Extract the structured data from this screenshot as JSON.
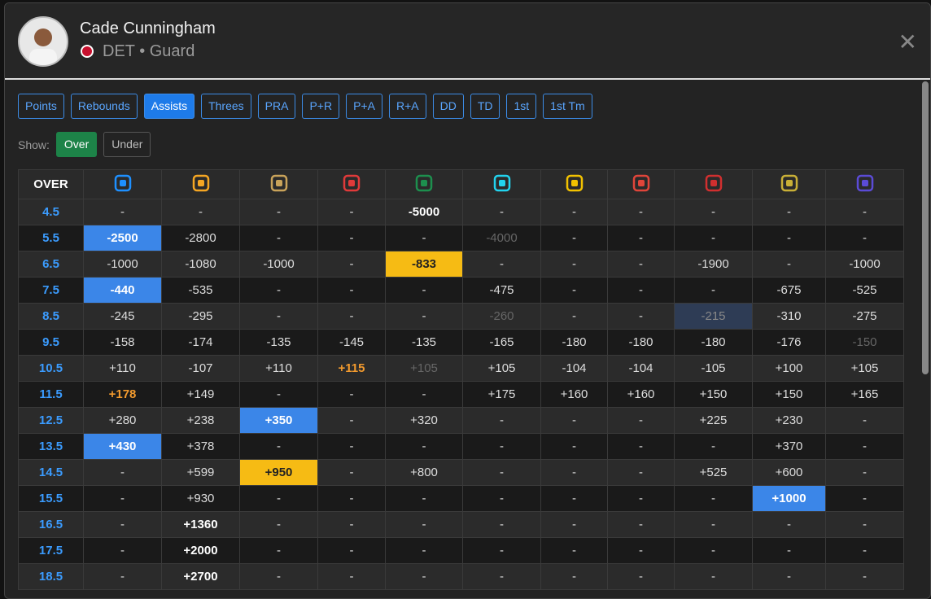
{
  "header": {
    "name": "Cade Cunningham",
    "subtitle": "DET • Guard"
  },
  "tabs": {
    "items": [
      "Points",
      "Rebounds",
      "Assists",
      "Threes",
      "PRA",
      "P+R",
      "P+A",
      "R+A",
      "DD",
      "TD",
      "1st",
      "1st Tm"
    ],
    "active": "Assists"
  },
  "filter": {
    "label": "Show:",
    "options": [
      "Over",
      "Under"
    ],
    "active": "Over"
  },
  "table": {
    "corner": "OVER",
    "book_colors": [
      "#1e90ff",
      "#f5a623",
      "#c9a35a",
      "#e03a3a",
      "#1d8f4e",
      "#22d3ee",
      "#f2c200",
      "#e0453a",
      "#d12f2f",
      "#c9b037",
      "#5b4bd6"
    ],
    "rows": [
      {
        "line": "4.5",
        "odds": [
          "-",
          "-",
          "-",
          "-",
          "-5000",
          "-",
          "-",
          "-",
          "-",
          "-",
          "-"
        ],
        "styles": {
          "4": "bold"
        }
      },
      {
        "line": "5.5",
        "odds": [
          "-2500",
          "-2800",
          "-",
          "-",
          "-",
          "-4000",
          "-",
          "-",
          "-",
          "-",
          "-"
        ],
        "styles": {
          "0": "blue",
          "5": "dim"
        }
      },
      {
        "line": "6.5",
        "odds": [
          "-1000",
          "-1080",
          "-1000",
          "-",
          "-833",
          "-",
          "-",
          "-",
          "-1900",
          "-",
          "-1000"
        ],
        "styles": {
          "4": "yellow"
        }
      },
      {
        "line": "7.5",
        "odds": [
          "-440",
          "-535",
          "-",
          "-",
          "-",
          "-475",
          "-",
          "-",
          "-",
          "-675",
          "-525"
        ],
        "styles": {
          "0": "blue"
        }
      },
      {
        "line": "8.5",
        "odds": [
          "-245",
          "-295",
          "-",
          "-",
          "-",
          "-260",
          "-",
          "-",
          "-215",
          "-310",
          "-275"
        ],
        "styles": {
          "5": "dim",
          "8": "navy"
        }
      },
      {
        "line": "9.5",
        "odds": [
          "-158",
          "-174",
          "-135",
          "-145",
          "-135",
          "-165",
          "-180",
          "-180",
          "-180",
          "-176",
          "-150"
        ],
        "styles": {
          "10": "dim"
        }
      },
      {
        "line": "10.5",
        "odds": [
          "+110",
          "-107",
          "+110",
          "+115",
          "+105",
          "+105",
          "-104",
          "-104",
          "-105",
          "+100",
          "+105"
        ],
        "styles": {
          "3": "orange",
          "4": "dim"
        }
      },
      {
        "line": "11.5",
        "odds": [
          "+178",
          "+149",
          "-",
          "-",
          "-",
          "+175",
          "+160",
          "+160",
          "+150",
          "+150",
          "+165"
        ],
        "styles": {
          "0": "orange"
        }
      },
      {
        "line": "12.5",
        "odds": [
          "+280",
          "+238",
          "+350",
          "-",
          "+320",
          "-",
          "-",
          "-",
          "+225",
          "+230",
          "-"
        ],
        "styles": {
          "2": "blue"
        }
      },
      {
        "line": "13.5",
        "odds": [
          "+430",
          "+378",
          "-",
          "-",
          "-",
          "-",
          "-",
          "-",
          "-",
          "+370",
          "-"
        ],
        "styles": {
          "0": "blue"
        }
      },
      {
        "line": "14.5",
        "odds": [
          "-",
          "+599",
          "+950",
          "-",
          "+800",
          "-",
          "-",
          "-",
          "+525",
          "+600",
          "-"
        ],
        "styles": {
          "2": "yellow"
        }
      },
      {
        "line": "15.5",
        "odds": [
          "-",
          "+930",
          "-",
          "-",
          "-",
          "-",
          "-",
          "-",
          "-",
          "+1000",
          "-"
        ],
        "styles": {
          "9": "blue"
        }
      },
      {
        "line": "16.5",
        "odds": [
          "-",
          "+1360",
          "-",
          "-",
          "-",
          "-",
          "-",
          "-",
          "-",
          "-",
          "-"
        ],
        "styles": {
          "1": "bold"
        }
      },
      {
        "line": "17.5",
        "odds": [
          "-",
          "+2000",
          "-",
          "-",
          "-",
          "-",
          "-",
          "-",
          "-",
          "-",
          "-"
        ],
        "styles": {
          "1": "bold"
        }
      },
      {
        "line": "18.5",
        "odds": [
          "-",
          "+2700",
          "-",
          "-",
          "-",
          "-",
          "-",
          "-",
          "-",
          "-",
          "-"
        ],
        "styles": {
          "1": "bold"
        }
      }
    ]
  }
}
